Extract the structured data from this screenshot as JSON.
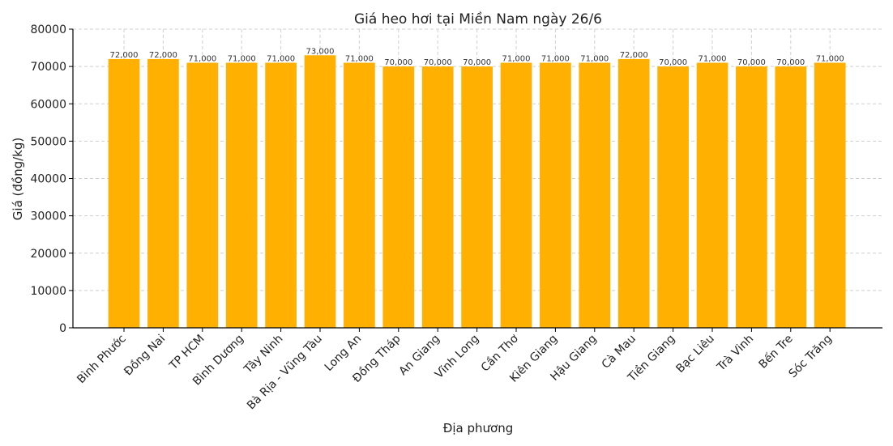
{
  "chart_data": {
    "type": "bar",
    "title": "Giá heo hơi tại Miền Nam ngày 26/6",
    "xlabel": "Địa phương",
    "ylabel": "Giá (đồng/kg)",
    "ylim": [
      0,
      80000
    ],
    "yticks": [
      0,
      10000,
      20000,
      30000,
      40000,
      50000,
      60000,
      70000,
      80000
    ],
    "grid": true,
    "bar_color": "#FFB000",
    "categories": [
      "Bình Phước",
      "Đồng Nai",
      "TP HCM",
      "Bình Dương",
      "Tây Ninh",
      "Bà Rịa - Vũng Tàu",
      "Long An",
      "Đồng Tháp",
      "An Giang",
      "Vĩnh Long",
      "Cần Thơ",
      "Kiên Giang",
      "Hậu Giang",
      "Cà Mau",
      "Tiền Giang",
      "Bạc Liêu",
      "Trà Vinh",
      "Bến Tre",
      "Sóc Trăng"
    ],
    "values": [
      72000,
      72000,
      71000,
      71000,
      71000,
      73000,
      71000,
      70000,
      70000,
      70000,
      71000,
      71000,
      71000,
      72000,
      70000,
      71000,
      70000,
      70000,
      71000
    ],
    "value_labels": [
      "72,000",
      "72,000",
      "71,000",
      "71,000",
      "71,000",
      "73,000",
      "71,000",
      "70,000",
      "70,000",
      "70,000",
      "71,000",
      "71,000",
      "71,000",
      "72,000",
      "70,000",
      "71,000",
      "70,000",
      "70,000",
      "71,000"
    ]
  }
}
